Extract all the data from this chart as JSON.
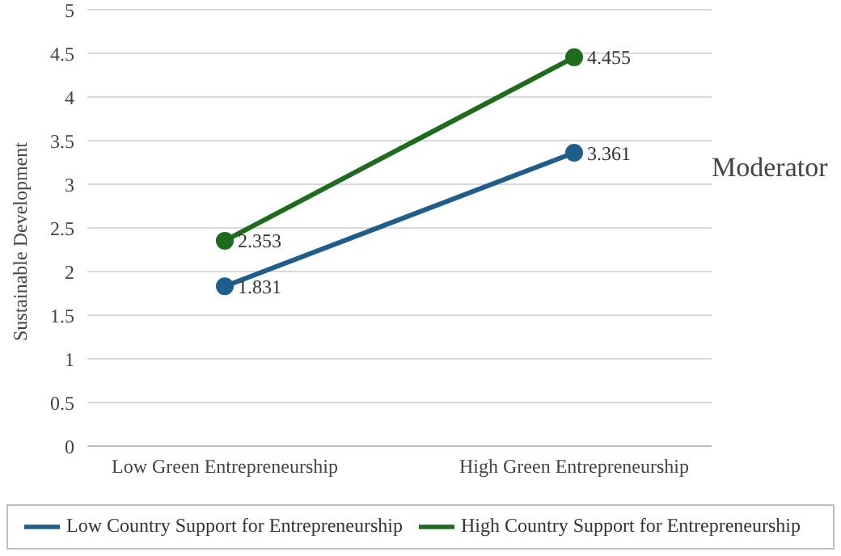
{
  "chart_data": {
    "type": "line",
    "ylabel": "Sustainable Development",
    "categories": [
      "Low Green Entrepreneurship",
      "High Green Entrepreneurship"
    ],
    "series": [
      {
        "name": "Low Country Support for Entrepreneurship",
        "color": "#1f5d8a",
        "values": [
          1.831,
          3.361
        ]
      },
      {
        "name": "High Country Support for Entrepreneurship",
        "color": "#1e6b1e",
        "values": [
          2.353,
          4.455
        ]
      }
    ],
    "ylim": [
      0,
      5
    ],
    "yticks": [
      0,
      0.5,
      1,
      1.5,
      2,
      2.5,
      3,
      3.5,
      4,
      4.5,
      5
    ],
    "grid": "y",
    "legend": "bottom",
    "marker": "circle",
    "line_style": "solid",
    "data_labels": true,
    "annotations": [
      "Moderator"
    ]
  }
}
